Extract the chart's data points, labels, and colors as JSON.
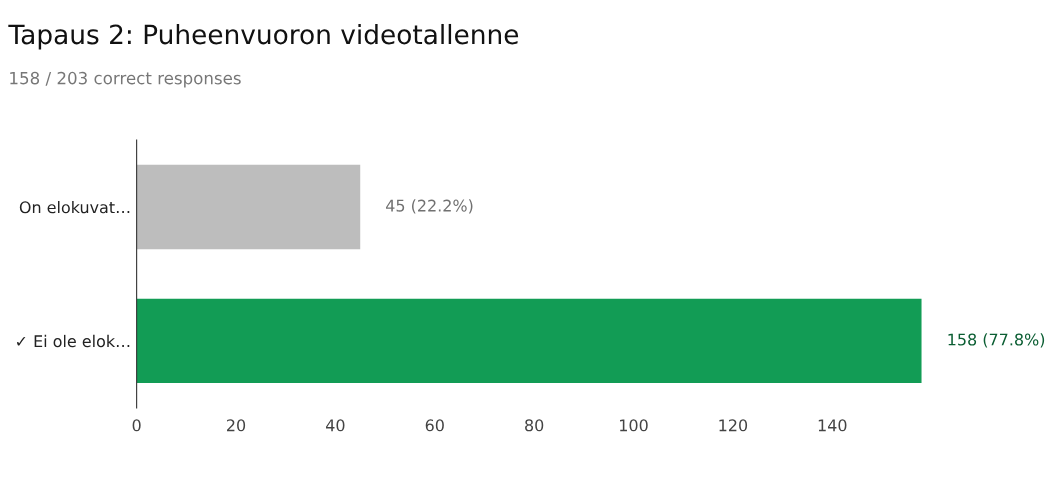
{
  "chart_data": {
    "type": "bar",
    "orientation": "horizontal",
    "title": "Tapaus 2: Puheenvuoron videotallenne",
    "subtitle": "158 / 203 correct responses",
    "categories": [
      "On elokuvat…",
      "✓ Ei ole elok…"
    ],
    "values": [
      45,
      158
    ],
    "colors": [
      "#bdbdbd",
      "#129c55"
    ],
    "value_labels": [
      "45 (22.2%)",
      "158 (77.8%)"
    ],
    "xlim": [
      0,
      158
    ],
    "xticks": [
      0,
      20,
      40,
      60,
      80,
      100,
      120,
      140
    ],
    "grid": false,
    "legend": false
  }
}
